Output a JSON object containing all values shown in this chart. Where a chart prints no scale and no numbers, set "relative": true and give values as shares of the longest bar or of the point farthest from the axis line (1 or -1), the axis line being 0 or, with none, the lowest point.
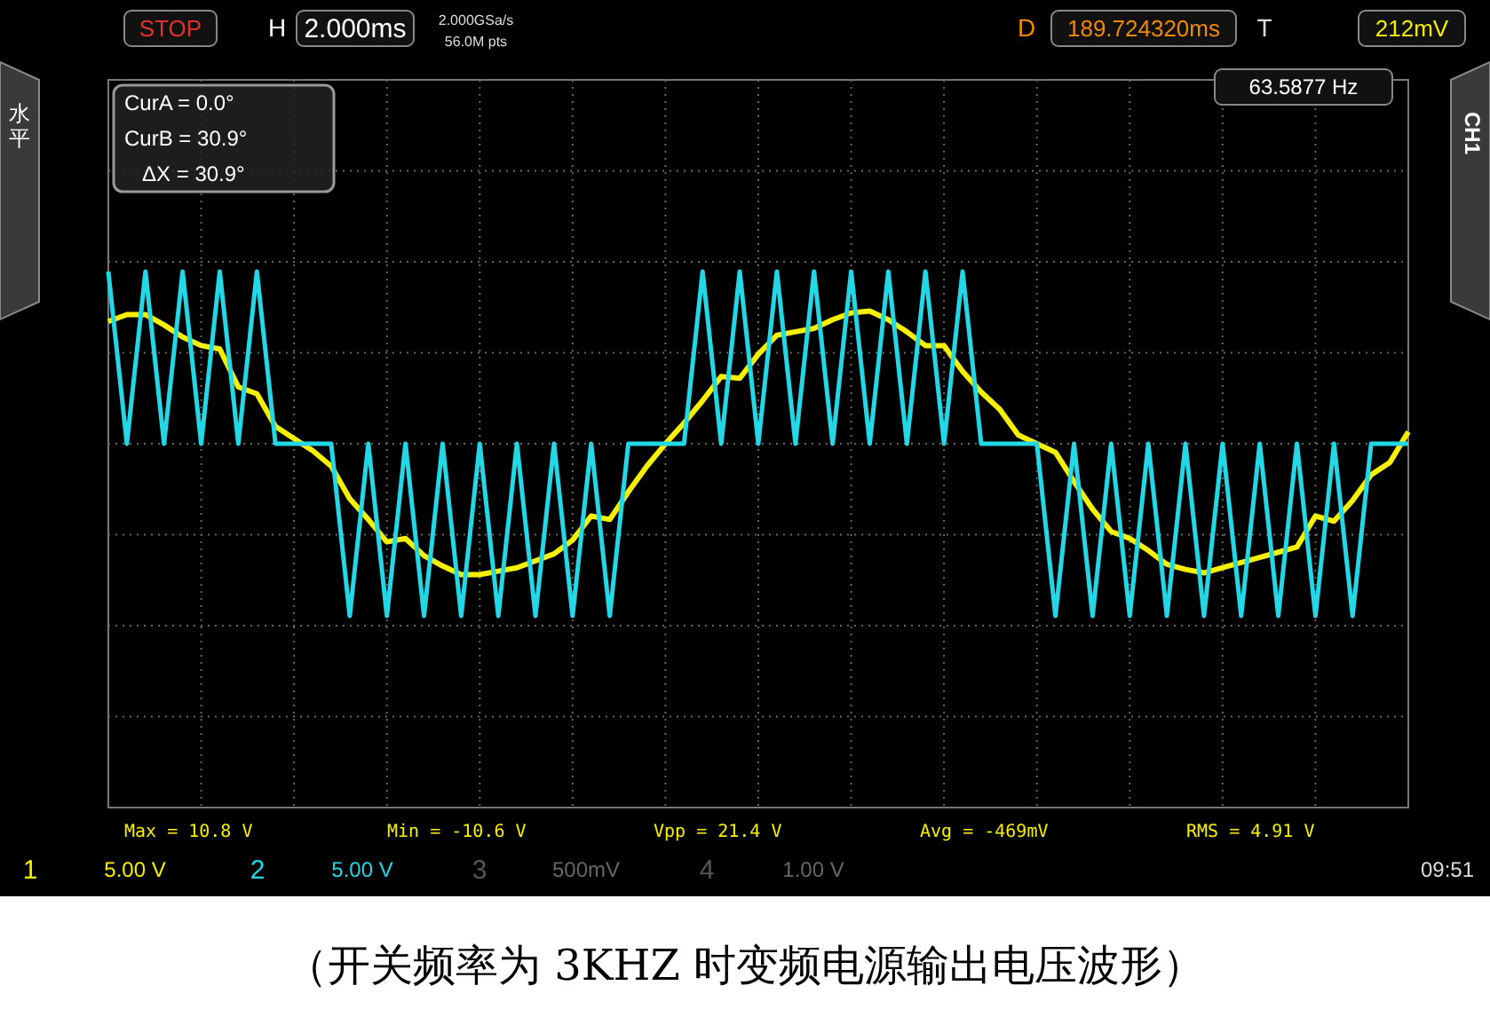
{
  "chart_data": {
    "type": "line",
    "title": "（开关频率为 3KHZ 时变频电源输出电压波形）",
    "relative": true,
    "categories": [
      null,
      null,
      null,
      null,
      null,
      null,
      null,
      null,
      null,
      null,
      null,
      null,
      null,
      null,
      null,
      null,
      null,
      null,
      null,
      null,
      null,
      null,
      null,
      null,
      null,
      null,
      null,
      null,
      null,
      null,
      null,
      null,
      null,
      null,
      null,
      null,
      null,
      null,
      null,
      null,
      null,
      null,
      null,
      null,
      null,
      null,
      null,
      null,
      null,
      null,
      null,
      null,
      null,
      null,
      null,
      null,
      null,
      null,
      null,
      null,
      null,
      null,
      null,
      null,
      null,
      null,
      null,
      null,
      null,
      null,
      null
    ],
    "grid": true,
    "marker": "none",
    "line_style": "solid",
    "series": [
      {
        "color": "#f5ef00",
        "values": [
          0.71,
          0.75,
          0.75,
          0.69,
          0.62,
          0.57,
          0.55,
          0.33,
          0.29,
          0.1,
          0.03,
          -0.04,
          -0.13,
          -0.32,
          -0.44,
          -0.57,
          -0.55,
          -0.65,
          -0.71,
          -0.76,
          -0.76,
          -0.74,
          -0.72,
          -0.68,
          -0.64,
          -0.56,
          -0.42,
          -0.44,
          -0.28,
          -0.13,
          0,
          0.12,
          0.25,
          0.39,
          0.38,
          0.52,
          0.63,
          0.65,
          0.67,
          0.72,
          0.76,
          0.77,
          0.72,
          0.65,
          0.57,
          0.57,
          0.42,
          0.3,
          0.2,
          0.05,
          0,
          -0.05,
          -0.22,
          -0.38,
          -0.51,
          -0.55,
          -0.62,
          -0.7,
          -0.73,
          -0.75,
          -0.72,
          -0.69,
          -0.66,
          -0.63,
          -0.6,
          -0.42,
          -0.45,
          -0.33,
          -0.18,
          -0.11,
          0.07
        ]
      },
      {
        "color": "#22d8e6",
        "values": [
          1,
          0,
          1,
          0,
          1,
          0,
          1,
          0,
          1,
          0,
          0,
          0,
          0,
          -1,
          0,
          -1,
          0,
          -1,
          0,
          -1,
          0,
          -1,
          0,
          -1,
          0,
          -1,
          0,
          -1,
          0,
          0,
          0,
          0,
          1,
          0,
          1,
          0,
          1,
          0,
          1,
          0,
          1,
          0,
          1,
          0,
          1,
          0,
          1,
          0,
          0,
          0,
          0,
          -1,
          0,
          -1,
          0,
          -1,
          0,
          -1,
          0,
          -1,
          0,
          -1,
          0,
          -1,
          0,
          -1,
          0,
          -1,
          0,
          0,
          0
        ]
      }
    ],
    "annotations": [
      "STOP",
      "H",
      "2.000ms",
      "2.000GSa/s",
      "56.0M pts",
      "D",
      "189.724320ms",
      "T",
      "212mV",
      "CurA = 0.0°",
      "CurB = 30.9°",
      "ΔX = 30.9°",
      "63.5877 Hz",
      "Max = 10.8 V",
      "Min = -10.6 V",
      "Vpp = 21.4 V",
      "Avg = -469mV",
      "RMS = 4.91 V",
      "1",
      "5.00 V",
      "2",
      "5.00 V",
      "3",
      "500mV",
      "4",
      "1.00 V",
      "09:51",
      "水平",
      "CH1"
    ]
  }
}
